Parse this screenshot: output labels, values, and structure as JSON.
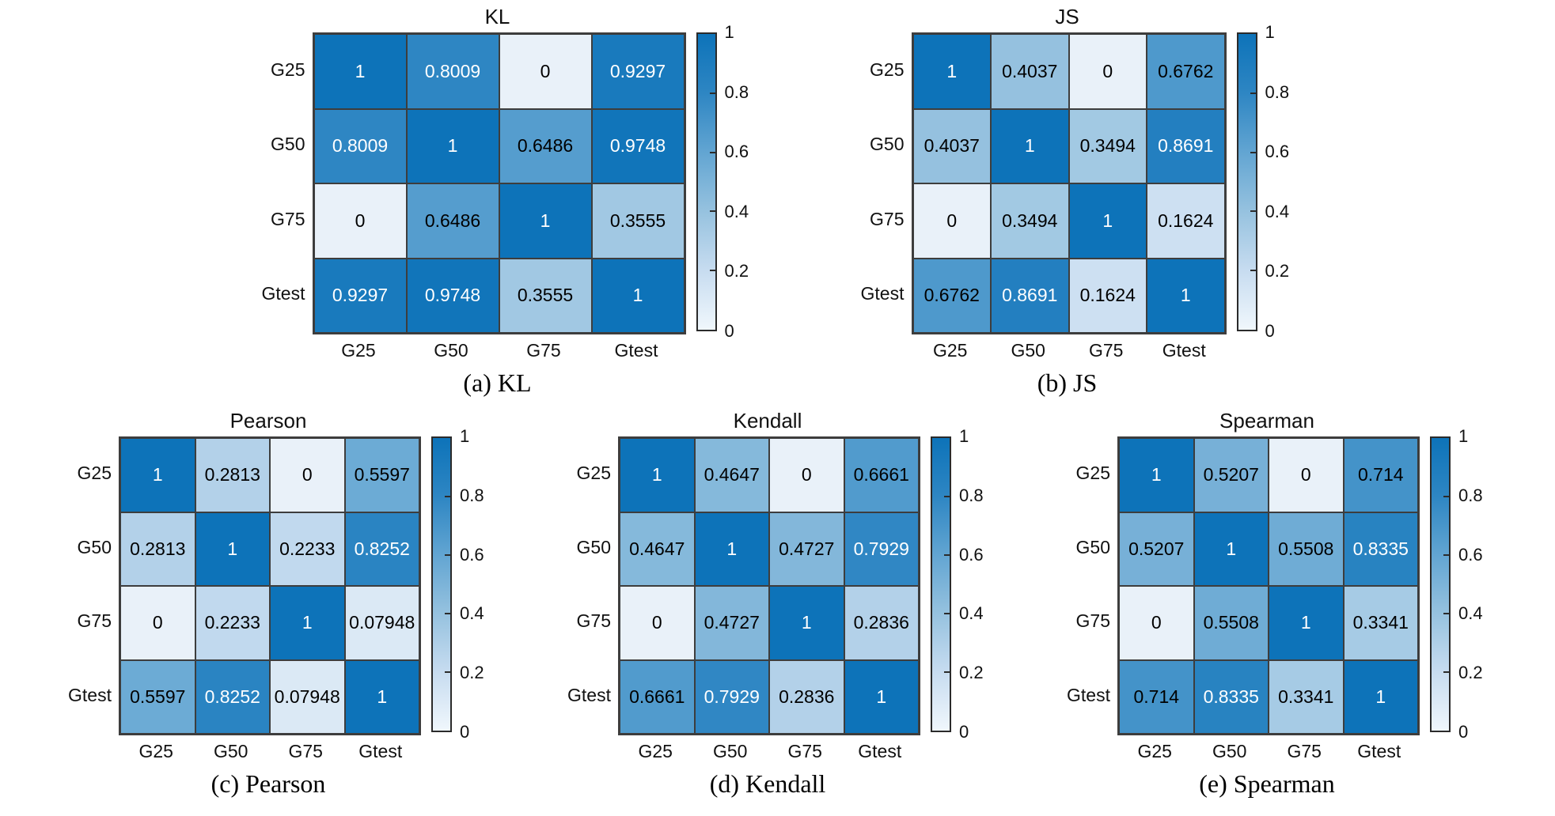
{
  "figure": {
    "background": "#ffffff",
    "grid_line_color": "#3d3d3d",
    "text_dark": "#000000",
    "text_light": "#ffffff",
    "white_text_threshold": 0.75,
    "colorbar_ticks": [
      "1",
      "0.8",
      "0.6",
      "0.4",
      "0.2",
      "0"
    ],
    "colormap_stops": [
      {
        "v": 0.0,
        "color": "#e9f1f9"
      },
      {
        "v": 0.2,
        "color": "#c7dcf0"
      },
      {
        "v": 0.4,
        "color": "#96c2df"
      },
      {
        "v": 0.6,
        "color": "#62a5d2"
      },
      {
        "v": 0.8,
        "color": "#2e86c3"
      },
      {
        "v": 1.0,
        "color": "#0d73b9"
      }
    ],
    "colorbar_bottom_color": "#f0f7fc"
  },
  "chart_data": [
    {
      "type": "heatmap",
      "title": "KL",
      "caption": "(a) KL",
      "x_categories": [
        "G25",
        "G50",
        "G75",
        "Gtest"
      ],
      "y_categories": [
        "G25",
        "G50",
        "G75",
        "Gtest"
      ],
      "values": [
        [
          1,
          0.8009,
          0,
          0.9297
        ],
        [
          0.8009,
          1,
          0.6486,
          0.9748
        ],
        [
          0,
          0.6486,
          1,
          0.3555
        ],
        [
          0.9297,
          0.9748,
          0.3555,
          1
        ]
      ],
      "cell_labels": [
        [
          "1",
          "0.8009",
          "0",
          "0.9297"
        ],
        [
          "0.8009",
          "1",
          "0.6486",
          "0.9748"
        ],
        [
          "0",
          "0.6486",
          "1",
          "0.3555"
        ],
        [
          "0.9297",
          "0.9748",
          "0.3555",
          "1"
        ]
      ],
      "colorbar_range": [
        0,
        1
      ],
      "colormap": "Blues"
    },
    {
      "type": "heatmap",
      "title": "JS",
      "caption": "(b) JS",
      "x_categories": [
        "G25",
        "G50",
        "G75",
        "Gtest"
      ],
      "y_categories": [
        "G25",
        "G50",
        "G75",
        "Gtest"
      ],
      "values": [
        [
          1,
          0.4037,
          0,
          0.6762
        ],
        [
          0.4037,
          1,
          0.3494,
          0.8691
        ],
        [
          0,
          0.3494,
          1,
          0.1624
        ],
        [
          0.6762,
          0.8691,
          0.1624,
          1
        ]
      ],
      "cell_labels": [
        [
          "1",
          "0.4037",
          "0",
          "0.6762"
        ],
        [
          "0.4037",
          "1",
          "0.3494",
          "0.8691"
        ],
        [
          "0",
          "0.3494",
          "1",
          "0.1624"
        ],
        [
          "0.6762",
          "0.8691",
          "0.1624",
          "1"
        ]
      ],
      "colorbar_range": [
        0,
        1
      ],
      "colormap": "Blues"
    },
    {
      "type": "heatmap",
      "title": "Pearson",
      "caption": "(c) Pearson",
      "x_categories": [
        "G25",
        "G50",
        "G75",
        "Gtest"
      ],
      "y_categories": [
        "G25",
        "G50",
        "G75",
        "Gtest"
      ],
      "values": [
        [
          1,
          0.2813,
          0,
          0.5597
        ],
        [
          0.2813,
          1,
          0.2233,
          0.8252
        ],
        [
          0,
          0.2233,
          1,
          0.07948
        ],
        [
          0.5597,
          0.8252,
          0.07948,
          1
        ]
      ],
      "cell_labels": [
        [
          "1",
          "0.2813",
          "0",
          "0.5597"
        ],
        [
          "0.2813",
          "1",
          "0.2233",
          "0.8252"
        ],
        [
          "0",
          "0.2233",
          "1",
          "0.07948"
        ],
        [
          "0.5597",
          "0.8252",
          "0.07948",
          "1"
        ]
      ],
      "colorbar_range": [
        0,
        1
      ],
      "colormap": "Blues"
    },
    {
      "type": "heatmap",
      "title": "Kendall",
      "caption": "(d) Kendall",
      "x_categories": [
        "G25",
        "G50",
        "G75",
        "Gtest"
      ],
      "y_categories": [
        "G25",
        "G50",
        "G75",
        "Gtest"
      ],
      "values": [
        [
          1,
          0.4647,
          0,
          0.6661
        ],
        [
          0.4647,
          1,
          0.4727,
          0.7929
        ],
        [
          0,
          0.4727,
          1,
          0.2836
        ],
        [
          0.6661,
          0.7929,
          0.2836,
          1
        ]
      ],
      "cell_labels": [
        [
          "1",
          "0.4647",
          "0",
          "0.6661"
        ],
        [
          "0.4647",
          "1",
          "0.4727",
          "0.7929"
        ],
        [
          "0",
          "0.4727",
          "1",
          "0.2836"
        ],
        [
          "0.6661",
          "0.7929",
          "0.2836",
          "1"
        ]
      ],
      "colorbar_range": [
        0,
        1
      ],
      "colormap": "Blues"
    },
    {
      "type": "heatmap",
      "title": "Spearman",
      "caption": "(e) Spearman",
      "x_categories": [
        "G25",
        "G50",
        "G75",
        "Gtest"
      ],
      "y_categories": [
        "G25",
        "G50",
        "G75",
        "Gtest"
      ],
      "values": [
        [
          1,
          0.5207,
          0,
          0.714
        ],
        [
          0.5207,
          1,
          0.5508,
          0.8335
        ],
        [
          0,
          0.5508,
          1,
          0.3341
        ],
        [
          0.714,
          0.8335,
          0.3341,
          1
        ]
      ],
      "cell_labels": [
        [
          "1",
          "0.5207",
          "0",
          "0.714"
        ],
        [
          "0.5207",
          "1",
          "0.5508",
          "0.8335"
        ],
        [
          "0",
          "0.5508",
          "1",
          "0.3341"
        ],
        [
          "0.714",
          "0.8335",
          "0.3341",
          "1"
        ]
      ],
      "colorbar_range": [
        0,
        1
      ],
      "colormap": "Blues"
    }
  ]
}
